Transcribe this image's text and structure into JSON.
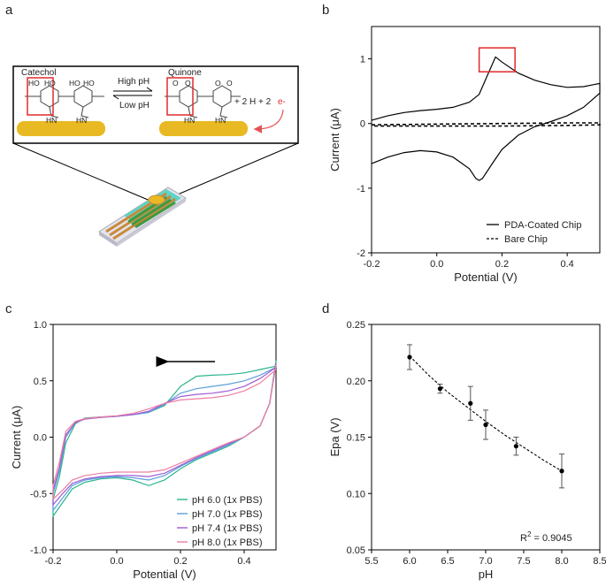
{
  "panels": {
    "a": {
      "label": "a",
      "catechol_label": "Catechol",
      "quinone_label": "Quinone",
      "high_ph": "High pH",
      "low_ph": "Low pH",
      "products": "+ 2 H + 2",
      "electron": "e-",
      "oh1": "HO",
      "oh2": "HO",
      "oh3": "HO",
      "oh4": "HO",
      "o1": "O",
      "o2": "O",
      "o3": "O",
      "o4": "O",
      "hn1": "HN",
      "hn2": "HN",
      "hn3": "HN",
      "hn4": "HN"
    },
    "b": {
      "label": "b"
    },
    "c": {
      "label": "c"
    },
    "d": {
      "label": "d"
    }
  },
  "colors": {
    "ph60": "#2bb58f",
    "ph70": "#5b9fdb",
    "ph74": "#a05bd6",
    "ph80": "#ec7fa0",
    "highlight": "#e02b2b",
    "electrode": "#e8b923",
    "chip": "#5fd3c6"
  },
  "chart_data": [
    {
      "id": "b",
      "type": "line",
      "xlabel": "Potential (V)",
      "ylabel": "Current (μA)",
      "xlim": [
        -0.2,
        0.5
      ],
      "ylim": [
        -2,
        1.5
      ],
      "xticks": [
        -0.2,
        0.0,
        0.2,
        0.4
      ],
      "xtick_labels": [
        "-0.2",
        "0.0",
        "0.2",
        "0.4"
      ],
      "yticks": [
        -2,
        -1,
        0,
        1
      ],
      "ytick_labels": [
        "-2",
        "-1",
        "0",
        "1"
      ],
      "legend_position": "bottom-right",
      "annotation": "red box around anodic peak",
      "highlight_box": {
        "x": [
          0.13,
          0.24
        ],
        "y": [
          0.8,
          1.17
        ]
      },
      "series": [
        {
          "name": "PDA-Coated Chip",
          "style": "solid",
          "x": [
            -0.2,
            -0.15,
            -0.1,
            -0.05,
            0.0,
            0.05,
            0.1,
            0.13,
            0.16,
            0.18,
            0.2,
            0.25,
            0.3,
            0.35,
            0.4,
            0.45,
            0.48,
            0.5,
            0.5,
            0.45,
            0.4,
            0.35,
            0.3,
            0.25,
            0.2,
            0.17,
            0.14,
            0.13,
            0.12,
            0.1,
            0.05,
            0.0,
            -0.05,
            -0.1,
            -0.15,
            -0.2
          ],
          "y": [
            0.05,
            0.12,
            0.17,
            0.2,
            0.22,
            0.25,
            0.33,
            0.45,
            0.8,
            1.03,
            0.95,
            0.78,
            0.67,
            0.6,
            0.56,
            0.57,
            0.6,
            0.62,
            0.47,
            0.25,
            0.12,
            0.03,
            -0.05,
            -0.18,
            -0.4,
            -0.62,
            -0.85,
            -0.88,
            -0.85,
            -0.7,
            -0.52,
            -0.44,
            -0.42,
            -0.45,
            -0.52,
            -0.62
          ]
        },
        {
          "name": "Bare Chip",
          "style": "dashed",
          "x": [
            -0.2,
            0.0,
            0.2,
            0.4,
            0.5,
            0.5,
            0.4,
            0.2,
            0.0,
            -0.2
          ],
          "y": [
            -0.02,
            -0.01,
            0.0,
            0.01,
            0.01,
            -0.02,
            -0.03,
            -0.04,
            -0.04,
            -0.04
          ]
        }
      ]
    },
    {
      "id": "c",
      "type": "line",
      "xlabel": "Potential (V)",
      "ylabel": "Current (μA)",
      "xlim": [
        -0.2,
        0.5
      ],
      "ylim": [
        -1.0,
        1.0
      ],
      "xticks": [
        -0.2,
        0.0,
        0.2,
        0.4
      ],
      "xtick_labels": [
        "-0.2",
        "0.0",
        "0.2",
        "0.4"
      ],
      "yticks": [
        -1.0,
        -0.5,
        0.0,
        0.5,
        1.0
      ],
      "ytick_labels": [
        "-1.0",
        "-0.5",
        "0.0",
        "0.5",
        "1.0"
      ],
      "legend_position": "bottom-right",
      "scan_direction": "left",
      "series": [
        {
          "name": "pH 6.0 (1x PBS)",
          "color": "#2bb58f",
          "x": [
            0.5,
            0.45,
            0.4,
            0.35,
            0.3,
            0.25,
            0.2,
            0.15,
            0.1,
            0.05,
            0.0,
            -0.05,
            -0.1,
            -0.13,
            -0.16,
            -0.18,
            -0.2,
            -0.2,
            -0.17,
            -0.14,
            -0.1,
            -0.05,
            0.0,
            0.05,
            0.1,
            0.15,
            0.2,
            0.25,
            0.3,
            0.35,
            0.4,
            0.45,
            0.48,
            0.5
          ],
          "y": [
            0.63,
            0.6,
            0.57,
            0.555,
            0.55,
            0.54,
            0.45,
            0.28,
            0.22,
            0.2,
            0.185,
            0.18,
            0.17,
            0.12,
            -0.05,
            -0.35,
            -0.55,
            -0.7,
            -0.58,
            -0.46,
            -0.4,
            -0.37,
            -0.36,
            -0.38,
            -0.43,
            -0.38,
            -0.28,
            -0.2,
            -0.14,
            -0.08,
            0.0,
            0.1,
            0.3,
            0.68
          ]
        },
        {
          "name": "pH 7.0 (1x PBS)",
          "color": "#5b9fdb",
          "x": [
            0.5,
            0.45,
            0.4,
            0.35,
            0.3,
            0.25,
            0.2,
            0.15,
            0.1,
            0.05,
            0.0,
            -0.05,
            -0.1,
            -0.13,
            -0.16,
            -0.18,
            -0.2,
            -0.2,
            -0.17,
            -0.14,
            -0.1,
            -0.05,
            0.0,
            0.05,
            0.1,
            0.15,
            0.2,
            0.25,
            0.3,
            0.35,
            0.4,
            0.45,
            0.48,
            0.5
          ],
          "y": [
            0.62,
            0.55,
            0.5,
            0.47,
            0.45,
            0.43,
            0.39,
            0.29,
            0.22,
            0.2,
            0.185,
            0.175,
            0.165,
            0.13,
            0.0,
            -0.3,
            -0.5,
            -0.65,
            -0.54,
            -0.43,
            -0.38,
            -0.36,
            -0.35,
            -0.36,
            -0.38,
            -0.34,
            -0.26,
            -0.19,
            -0.13,
            -0.07,
            0.0,
            0.1,
            0.3,
            0.66
          ]
        },
        {
          "name": "pH 7.4 (1x PBS)",
          "color": "#a05bd6",
          "x": [
            0.5,
            0.45,
            0.4,
            0.35,
            0.3,
            0.25,
            0.2,
            0.15,
            0.1,
            0.05,
            0.0,
            -0.05,
            -0.1,
            -0.13,
            -0.16,
            -0.18,
            -0.2,
            -0.2,
            -0.17,
            -0.14,
            -0.1,
            -0.05,
            0.0,
            0.05,
            0.1,
            0.15,
            0.2,
            0.25,
            0.3,
            0.35,
            0.4,
            0.45,
            0.48,
            0.5
          ],
          "y": [
            0.62,
            0.52,
            0.45,
            0.41,
            0.39,
            0.38,
            0.36,
            0.3,
            0.23,
            0.2,
            0.185,
            0.175,
            0.16,
            0.13,
            0.02,
            -0.27,
            -0.47,
            -0.6,
            -0.5,
            -0.41,
            -0.37,
            -0.35,
            -0.34,
            -0.34,
            -0.35,
            -0.32,
            -0.25,
            -0.18,
            -0.12,
            -0.06,
            0.0,
            0.1,
            0.3,
            0.66
          ]
        },
        {
          "name": "pH 8.0 (1x PBS)",
          "color": "#ec7fa0",
          "x": [
            0.5,
            0.45,
            0.4,
            0.35,
            0.3,
            0.25,
            0.2,
            0.15,
            0.1,
            0.05,
            0.0,
            -0.05,
            -0.1,
            -0.13,
            -0.16,
            -0.18,
            -0.2,
            -0.2,
            -0.17,
            -0.14,
            -0.1,
            -0.05,
            0.0,
            0.05,
            0.1,
            0.15,
            0.2,
            0.25,
            0.3,
            0.35,
            0.4,
            0.45,
            0.48,
            0.5
          ],
          "y": [
            0.6,
            0.48,
            0.41,
            0.37,
            0.35,
            0.34,
            0.33,
            0.3,
            0.25,
            0.21,
            0.19,
            0.18,
            0.165,
            0.14,
            0.05,
            -0.22,
            -0.43,
            -0.55,
            -0.47,
            -0.38,
            -0.34,
            -0.32,
            -0.31,
            -0.31,
            -0.31,
            -0.29,
            -0.23,
            -0.17,
            -0.11,
            -0.05,
            0.0,
            0.1,
            0.3,
            0.64
          ]
        }
      ]
    },
    {
      "id": "d",
      "type": "scatter",
      "xlabel": "pH",
      "ylabel": "Epa (V)",
      "xlim": [
        5.5,
        8.5
      ],
      "ylim": [
        0.05,
        0.25
      ],
      "xticks": [
        5.5,
        6.0,
        6.5,
        7.0,
        7.5,
        8.0,
        8.5
      ],
      "xtick_labels": [
        "5.5",
        "6.0",
        "6.5",
        "7.0",
        "7.5",
        "8.0",
        "8.5"
      ],
      "yticks": [
        0.05,
        0.1,
        0.15,
        0.2,
        0.25
      ],
      "ytick_labels": [
        "0.05",
        "0.10",
        "0.15",
        "0.20",
        "0.25"
      ],
      "annotation": "R² = 0.9045",
      "r2_prefix": "R",
      "r2_sup": "2",
      "r2_value": " = 0.9045",
      "points": [
        {
          "x": 6.0,
          "y": 0.221,
          "err": 0.011
        },
        {
          "x": 6.4,
          "y": 0.193,
          "err": 0.004
        },
        {
          "x": 6.8,
          "y": 0.18,
          "err": 0.015
        },
        {
          "x": 7.0,
          "y": 0.161,
          "err": 0.013
        },
        {
          "x": 7.4,
          "y": 0.142,
          "err": 0.008
        },
        {
          "x": 8.0,
          "y": 0.12,
          "err": 0.015
        }
      ],
      "fit": {
        "style": "dashed",
        "x": [
          6.0,
          6.25,
          6.5,
          6.75,
          7.0,
          7.25,
          7.5,
          7.75,
          8.0
        ],
        "y": [
          0.222,
          0.205,
          0.19,
          0.177,
          0.164,
          0.152,
          0.141,
          0.13,
          0.12
        ]
      }
    }
  ]
}
